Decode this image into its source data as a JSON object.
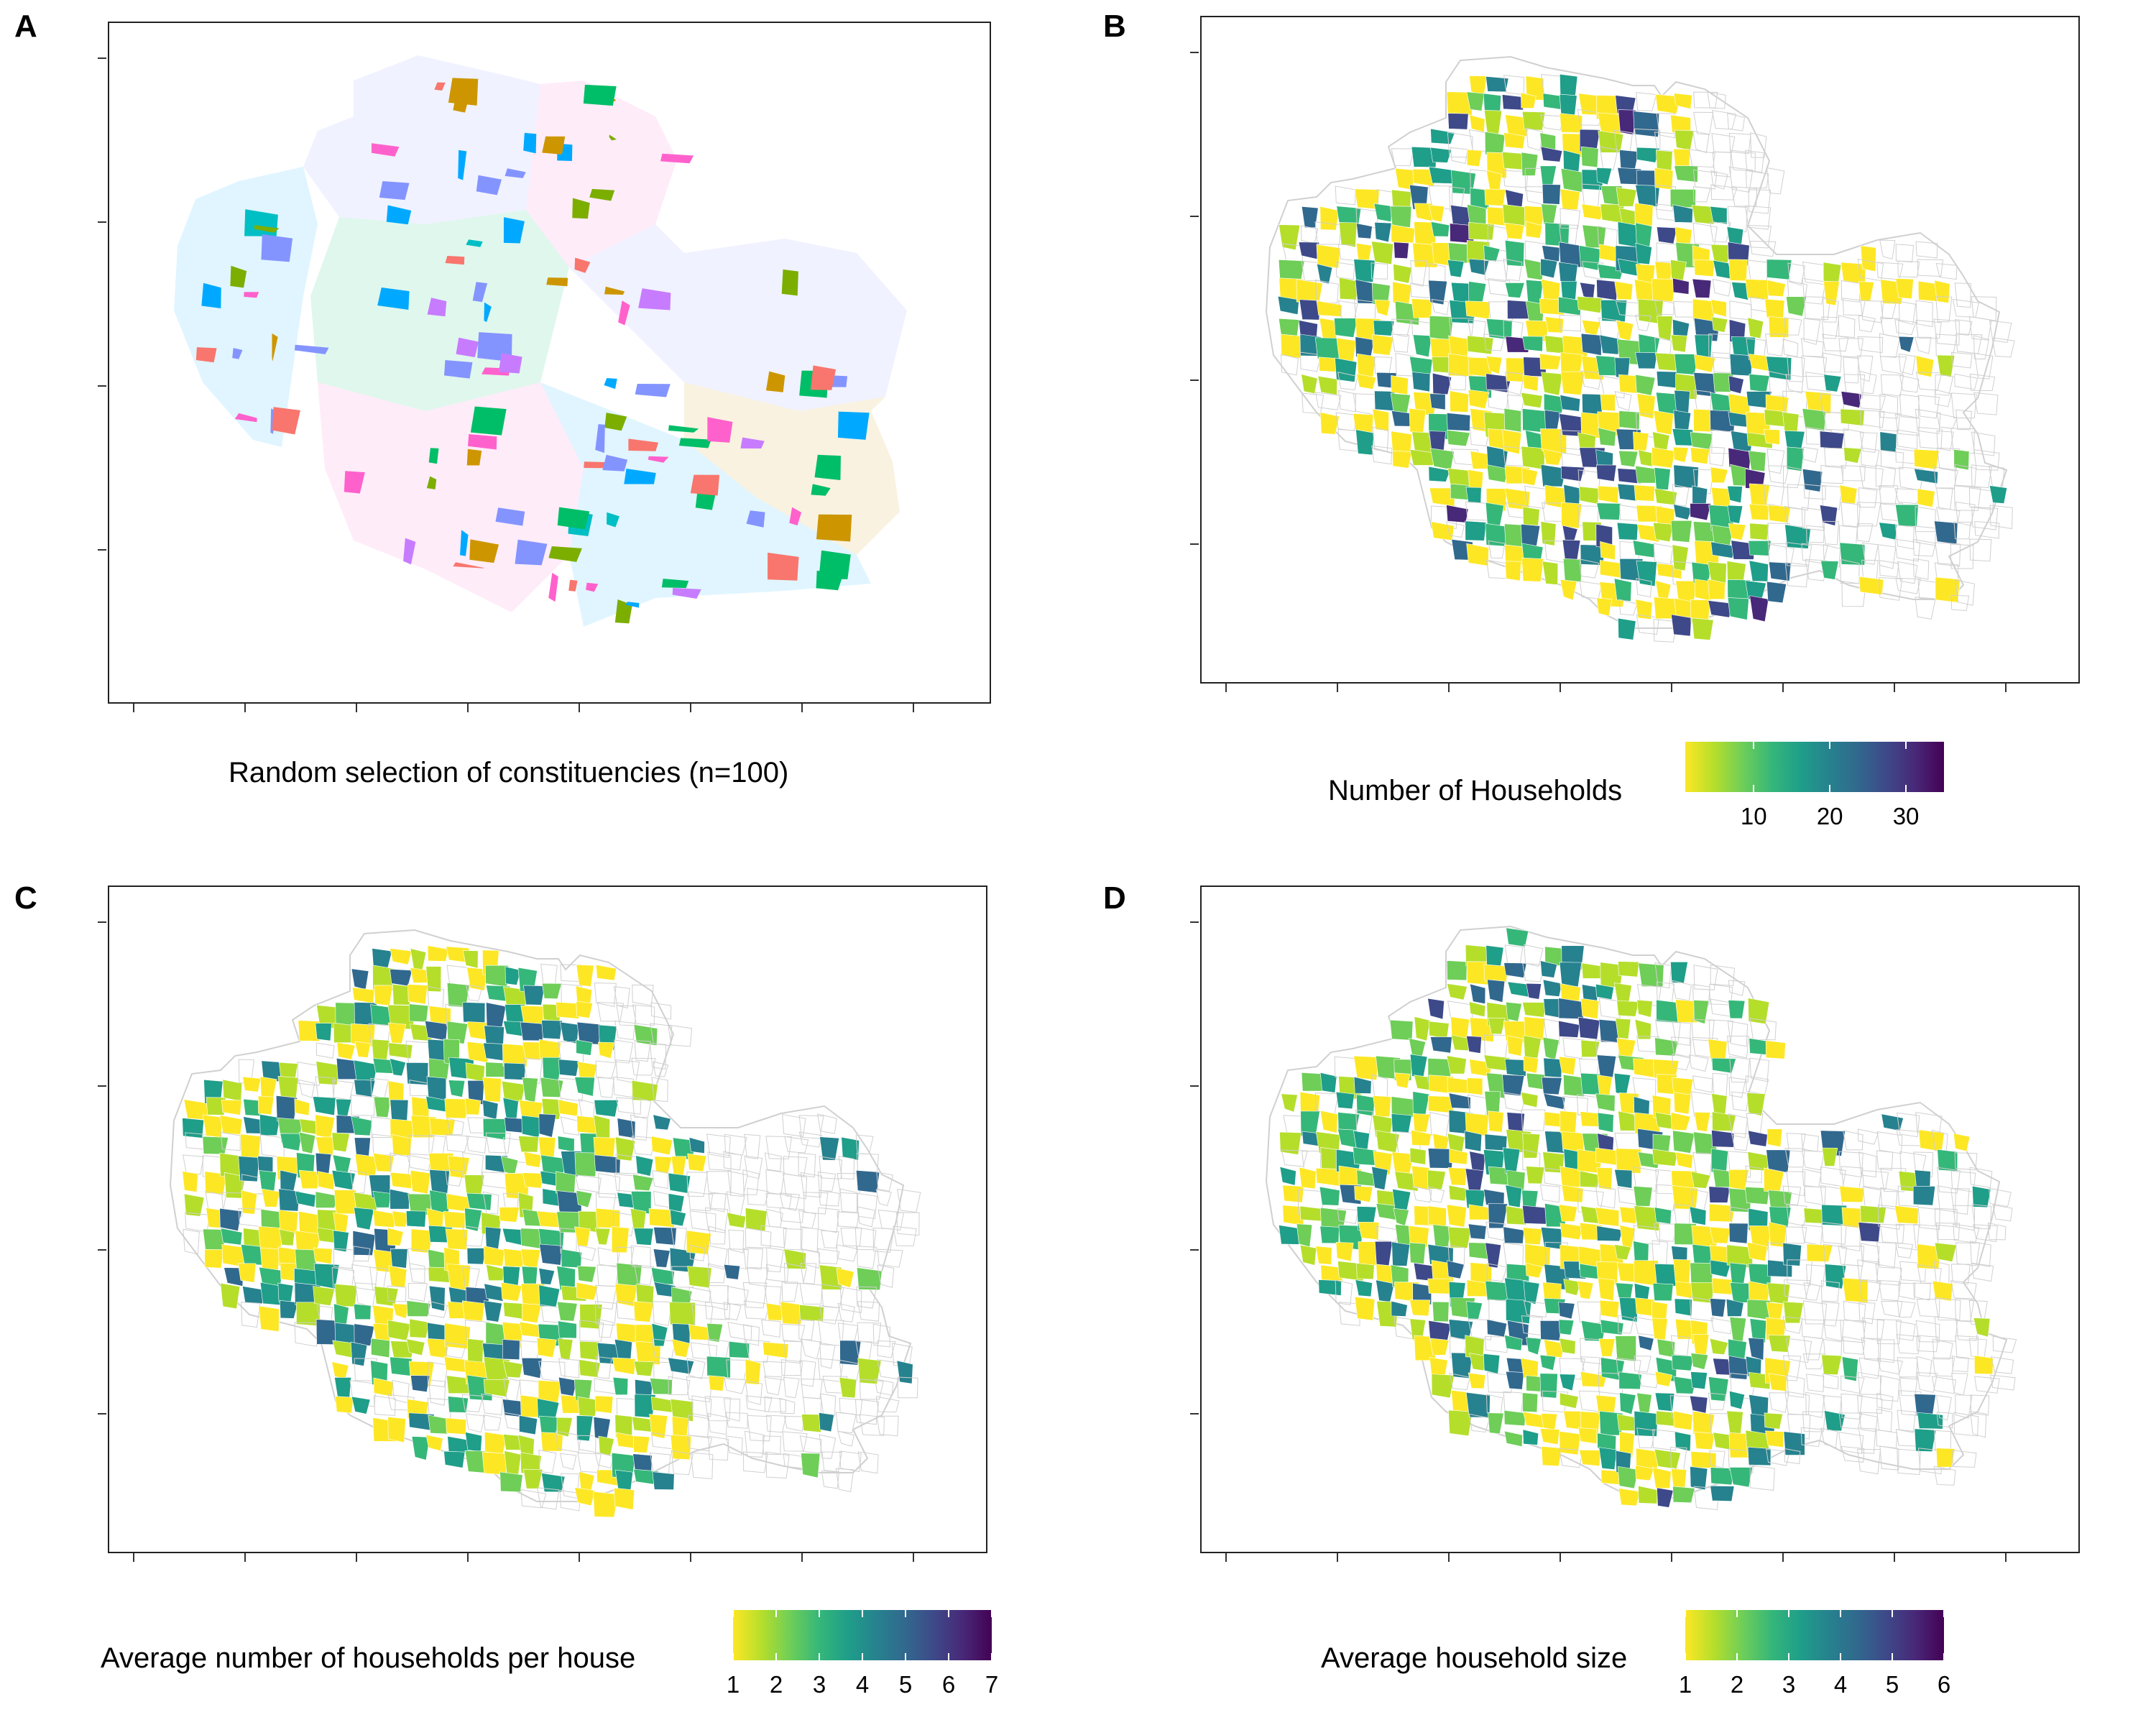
{
  "panels": [
    {
      "letter": "A",
      "caption": "Random selection of constituencies (n=100)",
      "fill_scheme": "categorical"
    },
    {
      "letter": "B",
      "legend": {
        "title": "Number of Households",
        "ticks": [
          "10",
          "20",
          "30"
        ],
        "tick_values": [
          10,
          20,
          30
        ],
        "range": [
          1,
          35
        ]
      },
      "fill_scheme": "viridis"
    },
    {
      "letter": "C",
      "legend": {
        "title": "Average number of households per house",
        "ticks": [
          "1",
          "2",
          "3",
          "4",
          "5",
          "6",
          "7"
        ],
        "tick_values": [
          1,
          2,
          3,
          4,
          5,
          6,
          7
        ],
        "range": [
          1,
          7
        ]
      },
      "fill_scheme": "viridis"
    },
    {
      "letter": "D",
      "legend": {
        "title": "Average household size",
        "ticks": [
          "1",
          "2",
          "3",
          "4",
          "5",
          "6"
        ],
        "tick_values": [
          1,
          2,
          3,
          4,
          5,
          6
        ],
        "range": [
          1,
          6
        ]
      },
      "fill_scheme": "viridis"
    }
  ],
  "colors": {
    "viridis": [
      "#fde725",
      "#b5de2b",
      "#6ece58",
      "#35b779",
      "#1f9e89",
      "#26828e",
      "#31688e",
      "#3e4989",
      "#482878",
      "#440154"
    ],
    "categorical": [
      "#f8766d",
      "#cd9600",
      "#7cae00",
      "#00be67",
      "#00bfc4",
      "#00a9ff",
      "#8494ff",
      "#c77cff",
      "#ff61cc"
    ],
    "outline": "#d0d0d0",
    "frame": "#222222"
  }
}
